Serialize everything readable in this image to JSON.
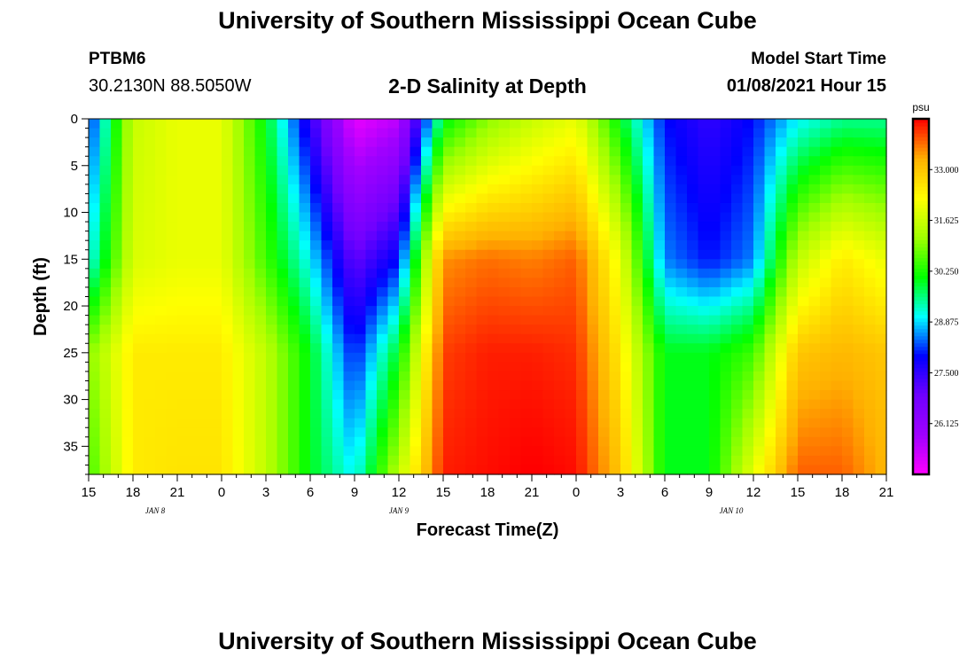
{
  "header": {
    "title": "University of Southern Mississippi Ocean Cube",
    "station_id": "PTBM6",
    "coords": "30.2130N 88.5050W",
    "plot_title": "2-D Salinity at Depth",
    "model_start_label": "Model Start Time",
    "model_start_value": "01/08/2021 Hour 15"
  },
  "footer": {
    "title": "University of Southern Mississippi Ocean Cube"
  },
  "chart_data": {
    "type": "heatmap",
    "title": "2-D Salinity at Depth",
    "xlabel": "Forecast Time(Z)",
    "ylabel": "Depth (ft)",
    "x_unit": "hours since 01/08/2021 15Z",
    "xlim": [
      0,
      54
    ],
    "ylim": [
      0,
      38
    ],
    "y_inverted": true,
    "x_tick_labels": [
      "15",
      "18",
      "21",
      "0",
      "3",
      "6",
      "9",
      "12",
      "15",
      "18",
      "21",
      "0",
      "3",
      "6",
      "9",
      "12",
      "15",
      "18",
      "21"
    ],
    "x_date_labels": [
      {
        "label": "JAN 8",
        "at_tick": 1.5
      },
      {
        "label": "JAN 9",
        "at_tick": 7
      },
      {
        "label": "JAN 10",
        "at_tick": 14.5
      }
    ],
    "y_ticks": [
      0,
      5,
      10,
      15,
      20,
      25,
      30,
      35
    ],
    "colorbar": {
      "unit": "psu",
      "min": 24.75,
      "max": 34.375,
      "tick_values": [
        26.125,
        27.5,
        28.875,
        30.25,
        31.625,
        33.0
      ],
      "tick_labels": [
        "26.125",
        "27.500",
        "28.875",
        "30.250",
        "31.625",
        "33.000"
      ],
      "colors": [
        "#ff00ff",
        "#a000ff",
        "#7000ff",
        "#0000ff",
        "#00ffff",
        "#00ff00",
        "#a0ff00",
        "#ffff00",
        "#ffb000",
        "#ff0000"
      ]
    },
    "grid_depths": [
      0,
      15,
      25,
      38
    ],
    "grid_hours": [
      0,
      3,
      6,
      9,
      12,
      15,
      18,
      21,
      24,
      27,
      30,
      33,
      36,
      39,
      42,
      45,
      48,
      51,
      54
    ],
    "salinity": [
      [
        28.0,
        31.6,
        32.0,
        32.0,
        30.0,
        27.5,
        25.0,
        25.5,
        30.0,
        31.0,
        31.6,
        32.0,
        30.0,
        28.0,
        27.5,
        28.0,
        29.0,
        29.5,
        29.5
      ],
      [
        29.0,
        31.8,
        32.0,
        32.0,
        30.5,
        29.0,
        27.0,
        28.0,
        33.5,
        33.7,
        33.6,
        33.8,
        32.0,
        28.5,
        28.0,
        28.5,
        31.5,
        32.5,
        32.0
      ],
      [
        31.0,
        32.5,
        32.5,
        32.5,
        31.5,
        30.0,
        28.0,
        30.0,
        34.0,
        34.2,
        34.2,
        34.1,
        32.5,
        30.0,
        30.0,
        30.5,
        33.0,
        33.2,
        33.0
      ],
      [
        30.5,
        32.5,
        32.6,
        32.6,
        31.5,
        30.0,
        29.0,
        31.5,
        34.2,
        34.3,
        34.4,
        34.3,
        33.0,
        30.0,
        30.0,
        32.0,
        33.8,
        33.8,
        33.2
      ]
    ]
  }
}
